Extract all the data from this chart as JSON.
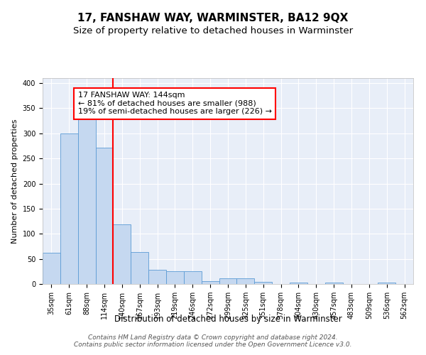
{
  "title": "17, FANSHAW WAY, WARMINSTER, BA12 9QX",
  "subtitle": "Size of property relative to detached houses in Warminster",
  "xlabel": "Distribution of detached houses by size in Warminster",
  "ylabel": "Number of detached properties",
  "categories": [
    "35sqm",
    "61sqm",
    "88sqm",
    "114sqm",
    "140sqm",
    "167sqm",
    "193sqm",
    "219sqm",
    "246sqm",
    "272sqm",
    "299sqm",
    "325sqm",
    "351sqm",
    "378sqm",
    "404sqm",
    "430sqm",
    "457sqm",
    "483sqm",
    "509sqm",
    "536sqm",
    "562sqm"
  ],
  "values": [
    62,
    300,
    328,
    272,
    119,
    63,
    28,
    26,
    25,
    6,
    11,
    11,
    4,
    0,
    3,
    0,
    3,
    0,
    0,
    3,
    0
  ],
  "bar_color": "#c5d8f0",
  "bar_edge_color": "#5b9bd5",
  "red_line_x": 3.5,
  "annotation_text": "17 FANSHAW WAY: 144sqm\n← 81% of detached houses are smaller (988)\n19% of semi-detached houses are larger (226) →",
  "annotation_box_color": "white",
  "annotation_box_edge": "red",
  "ylim": [
    0,
    410
  ],
  "yticks": [
    0,
    50,
    100,
    150,
    200,
    250,
    300,
    350,
    400
  ],
  "background_color": "#e8eef8",
  "grid_color": "white",
  "footer_text": "Contains HM Land Registry data © Crown copyright and database right 2024.\nContains public sector information licensed under the Open Government Licence v3.0.",
  "title_fontsize": 11,
  "subtitle_fontsize": 9.5,
  "xlabel_fontsize": 8.5,
  "ylabel_fontsize": 8,
  "tick_fontsize": 7,
  "annotation_fontsize": 8,
  "footer_fontsize": 6.5
}
